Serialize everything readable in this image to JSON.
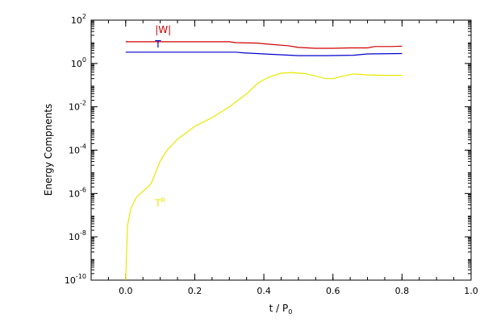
{
  "chart_data": {
    "type": "line",
    "title": "",
    "xlabel": "t / P",
    "xlabel_sub": "0",
    "ylabel": "Energy Compnents",
    "xscale": "linear",
    "yscale": "log",
    "xlim": [
      -0.1,
      1.0
    ],
    "ylim_exp": [
      -10,
      2
    ],
    "xticks": [
      0.0,
      0.2,
      0.4,
      0.6,
      0.8,
      1.0
    ],
    "xtick_labels": [
      "0.0",
      "0.2",
      "0.4",
      "0.6",
      "0.8",
      "1.0"
    ],
    "ytick_exps": [
      -10,
      -8,
      -6,
      -4,
      -2,
      0,
      2
    ],
    "ytick_base": "10",
    "ytick_exp_labels": [
      "-10",
      "-8",
      "-6",
      "-4",
      "-2",
      "0",
      "2"
    ],
    "grid": false,
    "legend": "inline labels",
    "series": [
      {
        "name": "|W|",
        "color": "#cc0000",
        "label_x": 0.085,
        "label_logy": 1.4,
        "points": [
          [
            0.0,
            1.0
          ],
          [
            0.2,
            1.0
          ],
          [
            0.3,
            1.0
          ],
          [
            0.32,
            0.96
          ],
          [
            0.38,
            0.94
          ],
          [
            0.42,
            0.88
          ],
          [
            0.47,
            0.82
          ],
          [
            0.5,
            0.74
          ],
          [
            0.55,
            0.7
          ],
          [
            0.6,
            0.7
          ],
          [
            0.65,
            0.72
          ],
          [
            0.7,
            0.72
          ],
          [
            0.72,
            0.78
          ],
          [
            0.77,
            0.78
          ],
          [
            0.8,
            0.8
          ]
        ]
      },
      {
        "name": "T",
        "color": "#0000cc",
        "label_x": 0.085,
        "label_logy": 0.74,
        "points": [
          [
            0.0,
            0.52
          ],
          [
            0.2,
            0.52
          ],
          [
            0.32,
            0.52
          ],
          [
            0.34,
            0.49
          ],
          [
            0.4,
            0.44
          ],
          [
            0.5,
            0.36
          ],
          [
            0.58,
            0.36
          ],
          [
            0.66,
            0.38
          ],
          [
            0.7,
            0.44
          ],
          [
            0.8,
            0.46
          ]
        ]
      },
      {
        "name": "T",
        "name_sup": "R",
        "color": "#e8e800",
        "label_x": 0.085,
        "label_logy": -6.6,
        "points": [
          [
            0.0,
            -10.0
          ],
          [
            0.003,
            -8.5
          ],
          [
            0.005,
            -7.5
          ],
          [
            0.015,
            -6.7
          ],
          [
            0.03,
            -6.2
          ],
          [
            0.05,
            -5.9
          ],
          [
            0.065,
            -5.7
          ],
          [
            0.075,
            -5.5
          ],
          [
            0.085,
            -5.1
          ],
          [
            0.1,
            -4.5
          ],
          [
            0.12,
            -4.0
          ],
          [
            0.15,
            -3.5
          ],
          [
            0.2,
            -2.9
          ],
          [
            0.25,
            -2.5
          ],
          [
            0.3,
            -2.0
          ],
          [
            0.35,
            -1.4
          ],
          [
            0.38,
            -0.95
          ],
          [
            0.4,
            -0.75
          ],
          [
            0.42,
            -0.6
          ],
          [
            0.45,
            -0.45
          ],
          [
            0.48,
            -0.42
          ],
          [
            0.52,
            -0.47
          ],
          [
            0.55,
            -0.58
          ],
          [
            0.58,
            -0.7
          ],
          [
            0.6,
            -0.7
          ],
          [
            0.63,
            -0.58
          ],
          [
            0.66,
            -0.48
          ],
          [
            0.7,
            -0.53
          ],
          [
            0.75,
            -0.55
          ],
          [
            0.8,
            -0.55
          ]
        ]
      }
    ]
  }
}
